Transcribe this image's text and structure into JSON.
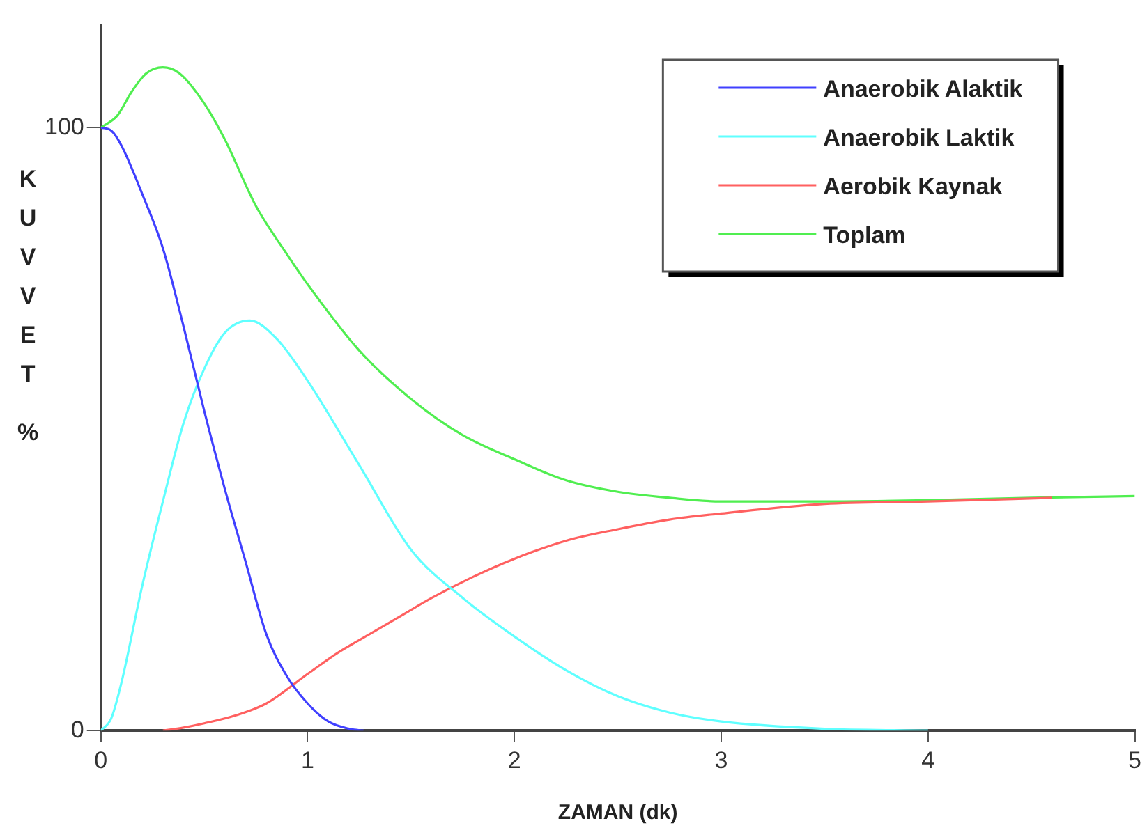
{
  "chart_data": {
    "type": "line",
    "xlabel": "ZAMAN (dk)",
    "ylabel": "KUVVET %",
    "xlim": [
      0,
      5
    ],
    "xticks": [
      0,
      1,
      2,
      3,
      4,
      5
    ],
    "ylim": [
      0,
      117
    ],
    "yticks": [
      0,
      100
    ],
    "grid": false,
    "legend": "top right",
    "marker": "none",
    "line_style": "solid",
    "series": [
      {
        "name": "Anaerobik Alaktik",
        "color": "#4040ff",
        "x": [
          0,
          0.05,
          0.1,
          0.2,
          0.3,
          0.4,
          0.5,
          0.6,
          0.7,
          0.8,
          0.9,
          1.0,
          1.1,
          1.2,
          1.27
        ],
        "values": [
          100,
          99.5,
          97,
          89,
          80,
          67,
          53,
          40,
          28,
          16,
          9,
          4.5,
          1.5,
          0.3,
          0
        ]
      },
      {
        "name": "Anaerobik Laktik",
        "color": "#60ffff",
        "x": [
          0,
          0.05,
          0.1,
          0.2,
          0.3,
          0.4,
          0.5,
          0.6,
          0.72,
          0.85,
          1.0,
          1.25,
          1.5,
          1.75,
          2.0,
          2.25,
          2.5,
          2.75,
          3.0,
          3.5,
          4.0
        ],
        "values": [
          0,
          2,
          8,
          24,
          38,
          51,
          60,
          66,
          68,
          65,
          58,
          44,
          30,
          22,
          15.6,
          10,
          5.7,
          3,
          1.5,
          0.3,
          0
        ]
      },
      {
        "name": "Aerobik Kaynak",
        "color": "#ff6060",
        "x": [
          0.3,
          0.4,
          0.5,
          0.65,
          0.8,
          1.0,
          1.15,
          1.3,
          1.45,
          1.6,
          1.8,
          2.0,
          2.25,
          2.5,
          2.75,
          3.0,
          3.5,
          4.0,
          4.6
        ],
        "values": [
          0,
          0.5,
          1.2,
          2.5,
          4.5,
          9.4,
          13,
          16,
          19,
          22,
          25.5,
          28.5,
          31.5,
          33.4,
          35,
          36,
          37.6,
          38,
          38.6
        ]
      },
      {
        "name": "Toplam",
        "color": "#50ee50",
        "x": [
          0,
          0.08,
          0.15,
          0.22,
          0.3,
          0.38,
          0.5,
          0.6,
          0.75,
          0.9,
          1.0,
          1.25,
          1.5,
          1.75,
          2.0,
          2.25,
          2.5,
          2.75,
          3.0,
          3.5,
          4.0,
          4.5,
          5.0
        ],
        "values": [
          100,
          102,
          106,
          109,
          110,
          109,
          104,
          98,
          87,
          79,
          74,
          63,
          55,
          49,
          45,
          41.5,
          39.6,
          38.6,
          38,
          38,
          38.2,
          38.6,
          38.9
        ]
      }
    ]
  }
}
